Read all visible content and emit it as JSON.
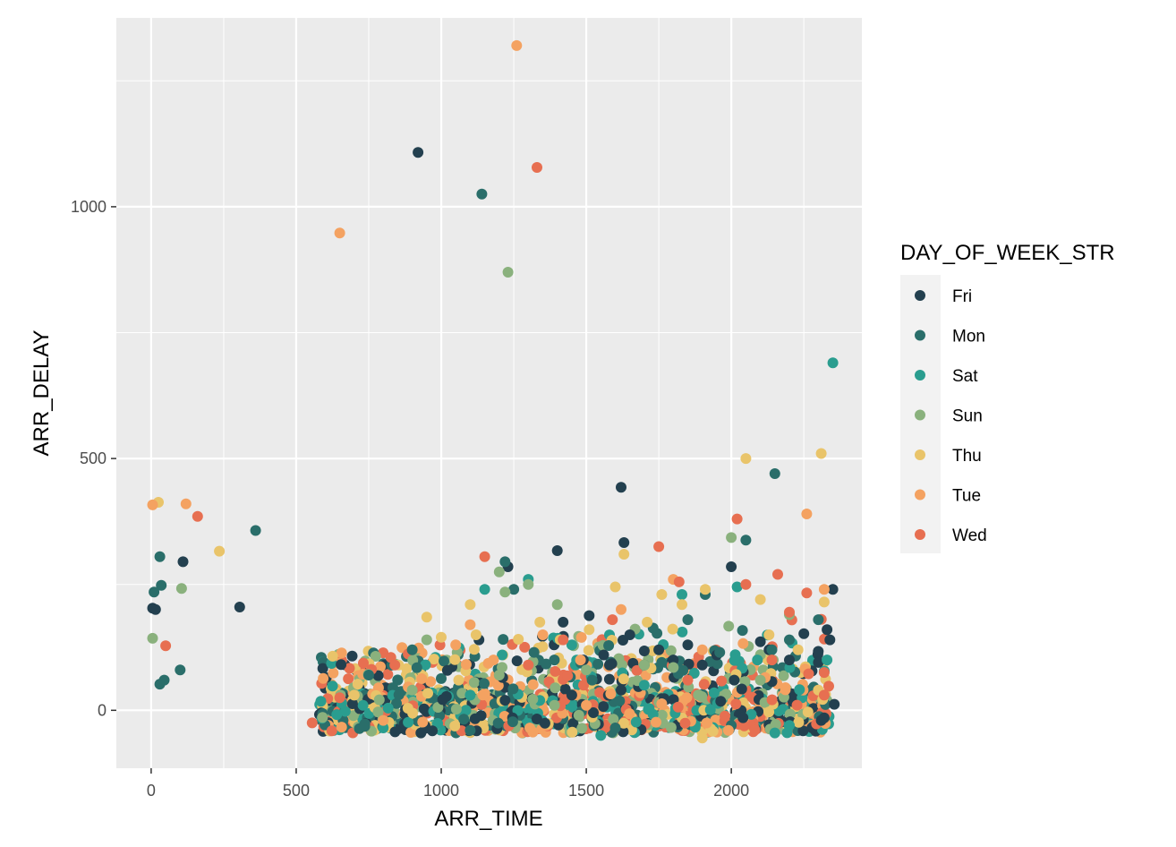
{
  "chart_data": {
    "type": "scatter",
    "title": "",
    "xlabel": "ARR_TIME",
    "ylabel": "ARR_DELAY",
    "xlim": [
      -120,
      2450
    ],
    "ylim": [
      -115,
      1375
    ],
    "x_ticks": [
      0,
      500,
      1000,
      1500,
      2000
    ],
    "x_tick_labels": [
      "0",
      "500",
      "1000",
      "1500",
      "2000"
    ],
    "y_ticks": [
      0,
      500,
      1000
    ],
    "y_tick_labels": [
      "0",
      "500",
      "1000"
    ],
    "grid": true,
    "legend": {
      "title": "DAY_OF_WEEK_STR",
      "placement": "right"
    },
    "colors": {
      "panel": "#ebebeb",
      "grid": "#ffffff",
      "Fri": "#23404f",
      "Mon": "#2a6e6a",
      "Sat": "#2a9d8f",
      "Sun": "#8ab17d",
      "Thu": "#e9c46a",
      "Tue": "#f4a261",
      "Wed": "#e76f51"
    },
    "series": [
      {
        "name": "Fri",
        "values": [
          [
            5,
            203
          ],
          [
            15,
            200
          ],
          [
            110,
            295
          ],
          [
            305,
            205
          ],
          [
            920,
            1108
          ],
          [
            1130,
            140
          ],
          [
            1230,
            285
          ],
          [
            1400,
            317
          ],
          [
            1420,
            175
          ],
          [
            1490,
            100
          ],
          [
            1510,
            188
          ],
          [
            1560,
            110
          ],
          [
            1580,
            90
          ],
          [
            1620,
            443
          ],
          [
            1630,
            333
          ],
          [
            1650,
            150
          ],
          [
            1700,
            118
          ],
          [
            1750,
            120
          ],
          [
            1800,
            100
          ],
          [
            1850,
            130
          ],
          [
            1900,
            90
          ],
          [
            1950,
            110
          ],
          [
            2000,
            285
          ],
          [
            2010,
            60
          ],
          [
            2100,
            136
          ],
          [
            2130,
            120
          ],
          [
            2200,
            100
          ],
          [
            2250,
            152
          ],
          [
            2300,
            95
          ],
          [
            2310,
            -20
          ],
          [
            2320,
            -15
          ],
          [
            2330,
            160
          ],
          [
            2340,
            140
          ],
          [
            2350,
            240
          ],
          [
            2355,
            12
          ],
          [
            930,
            -45
          ],
          [
            1450,
            30
          ],
          [
            1620,
            40
          ],
          [
            1220,
            20
          ]
        ]
      },
      {
        "name": "Mon",
        "values": [
          [
            10,
            235
          ],
          [
            30,
            305
          ],
          [
            35,
            248
          ],
          [
            30,
            52
          ],
          [
            45,
            60
          ],
          [
            100,
            80
          ],
          [
            360,
            357
          ],
          [
            900,
            120
          ],
          [
            1140,
            1025
          ],
          [
            1220,
            295
          ],
          [
            1250,
            240
          ],
          [
            1320,
            115
          ],
          [
            1390,
            100
          ],
          [
            1520,
            60
          ],
          [
            1700,
            90
          ],
          [
            1760,
            95
          ],
          [
            1850,
            180
          ],
          [
            1910,
            230
          ],
          [
            1960,
            115
          ],
          [
            2050,
            338
          ],
          [
            2140,
            120
          ],
          [
            2150,
            470
          ],
          [
            2200,
            140
          ],
          [
            2300,
            180
          ],
          [
            750,
            70
          ],
          [
            850,
            60
          ],
          [
            1100,
            -40
          ],
          [
            1600,
            -35
          ],
          [
            2000,
            -30
          ]
        ]
      },
      {
        "name": "Sat",
        "values": [
          [
            1150,
            240
          ],
          [
            1210,
            110
          ],
          [
            1300,
            260
          ],
          [
            1450,
            130
          ],
          [
            1550,
            -50
          ],
          [
            1830,
            230
          ],
          [
            2020,
            245
          ],
          [
            2090,
            100
          ],
          [
            2150,
            -45
          ],
          [
            2200,
            -30
          ],
          [
            2350,
            690
          ],
          [
            2330,
            100
          ],
          [
            800,
            -35
          ],
          [
            1100,
            30
          ],
          [
            1700,
            50
          ]
        ]
      },
      {
        "name": "Sun",
        "values": [
          [
            5,
            143
          ],
          [
            105,
            242
          ],
          [
            1200,
            275
          ],
          [
            1220,
            235
          ],
          [
            1230,
            870
          ],
          [
            1300,
            250
          ],
          [
            1400,
            210
          ],
          [
            1700,
            90
          ],
          [
            1800,
            85
          ],
          [
            2000,
            343
          ],
          [
            2100,
            60
          ],
          [
            2200,
            190
          ],
          [
            900,
            40
          ],
          [
            950,
            140
          ],
          [
            1200,
            70
          ],
          [
            1500,
            80
          ]
        ]
      },
      {
        "name": "Thu",
        "values": [
          [
            25,
            413
          ],
          [
            235,
            316
          ],
          [
            950,
            185
          ],
          [
            1000,
            145
          ],
          [
            1100,
            210
          ],
          [
            1120,
            150
          ],
          [
            1340,
            175
          ],
          [
            1410,
            140
          ],
          [
            1510,
            160
          ],
          [
            1600,
            245
          ],
          [
            1630,
            310
          ],
          [
            1710,
            175
          ],
          [
            1760,
            230
          ],
          [
            1830,
            210
          ],
          [
            1910,
            240
          ],
          [
            2050,
            500
          ],
          [
            2100,
            220
          ],
          [
            2130,
            150
          ],
          [
            2230,
            120
          ],
          [
            2310,
            510
          ],
          [
            2320,
            215
          ],
          [
            700,
            30
          ],
          [
            1060,
            60
          ],
          [
            1900,
            -55
          ],
          [
            2300,
            40
          ]
        ]
      },
      {
        "name": "Tue",
        "values": [
          [
            5,
            408
          ],
          [
            120,
            410
          ],
          [
            650,
            948
          ],
          [
            1260,
            1320
          ],
          [
            1350,
            150
          ],
          [
            1480,
            100
          ],
          [
            1620,
            200
          ],
          [
            1800,
            260
          ],
          [
            1900,
            120
          ],
          [
            2260,
            390
          ],
          [
            2320,
            240
          ],
          [
            1050,
            130
          ],
          [
            1100,
            170
          ],
          [
            1180,
            100
          ],
          [
            1990,
            -40
          ],
          [
            800,
            -20
          ],
          [
            1500,
            10
          ]
        ]
      },
      {
        "name": "Wed",
        "values": [
          [
            50,
            128
          ],
          [
            160,
            385
          ],
          [
            555,
            -25
          ],
          [
            650,
            25
          ],
          [
            1150,
            305
          ],
          [
            1330,
            1078
          ],
          [
            1420,
            140
          ],
          [
            1590,
            180
          ],
          [
            1750,
            325
          ],
          [
            1820,
            255
          ],
          [
            2020,
            380
          ],
          [
            2050,
            250
          ],
          [
            2160,
            270
          ],
          [
            2200,
            195
          ],
          [
            2260,
            233
          ],
          [
            2320,
            30
          ],
          [
            2320,
            75
          ],
          [
            840,
            90
          ],
          [
            1300,
            90
          ],
          [
            1850,
            60
          ],
          [
            2140,
            100
          ]
        ]
      }
    ]
  }
}
